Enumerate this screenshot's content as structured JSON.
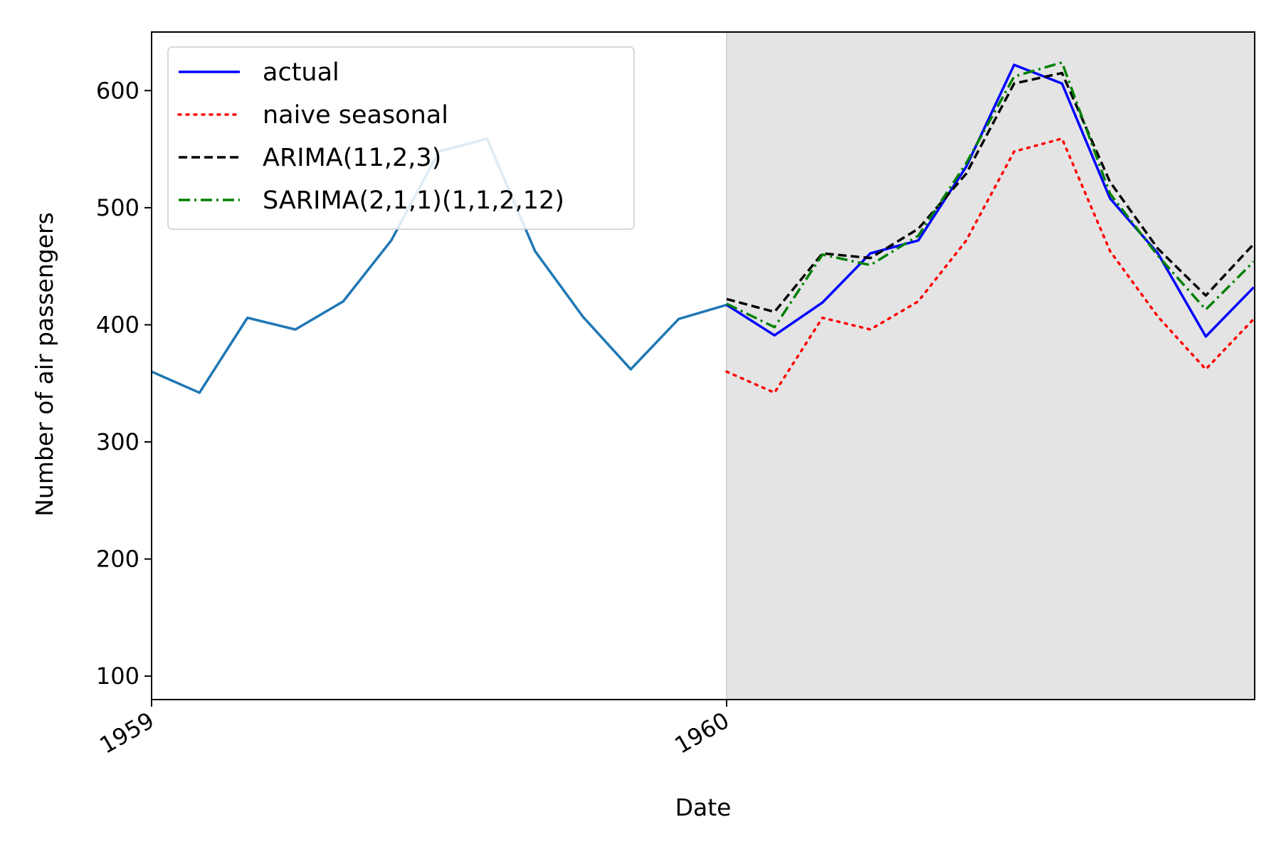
{
  "chart_data": {
    "type": "line",
    "title": "",
    "xlabel": "Date",
    "ylabel": "Number of air passengers",
    "x_tick_labels": [
      "1959",
      "1960"
    ],
    "y_ticks": [
      100,
      200,
      300,
      400,
      500,
      600
    ],
    "ylim": [
      80,
      650
    ],
    "xlim": [
      "1959-01",
      "1960-12"
    ],
    "grid": false,
    "legend_position": "upper-left",
    "forecast_region": {
      "from": "1960-01",
      "to": "1960-12",
      "color": "#e4e4e4"
    },
    "train": {
      "color": "#1f77b4",
      "x": [
        "1959-01",
        "1959-02",
        "1959-03",
        "1959-04",
        "1959-05",
        "1959-06",
        "1959-07",
        "1959-08",
        "1959-09",
        "1959-10",
        "1959-11",
        "1959-12",
        "1960-01"
      ],
      "values": [
        360,
        342,
        406,
        396,
        420,
        472,
        548,
        559,
        463,
        407,
        362,
        405,
        417
      ]
    },
    "x": [
      "1960-01",
      "1960-02",
      "1960-03",
      "1960-04",
      "1960-05",
      "1960-06",
      "1960-07",
      "1960-08",
      "1960-09",
      "1960-10",
      "1960-11",
      "1960-12"
    ],
    "series": [
      {
        "name": "actual",
        "color": "#0000ff",
        "style": "solid",
        "values": [
          417,
          391,
          419,
          461,
          472,
          535,
          622,
          606,
          508,
          461,
          390,
          432
        ]
      },
      {
        "name": "naive seasonal",
        "color": "#ff0000",
        "style": "dotted",
        "values": [
          360,
          342,
          406,
          396,
          420,
          472,
          548,
          559,
          463,
          407,
          362,
          405
        ]
      },
      {
        "name": "ARIMA(11,2,3)",
        "color": "#000000",
        "style": "dashed",
        "values": [
          422,
          411,
          461,
          457,
          482,
          529,
          606,
          615,
          522,
          465,
          425,
          469
        ]
      },
      {
        "name": "SARIMA(2,1,1)(1,1,2,12)",
        "color": "#008000",
        "style": "dashdot",
        "values": [
          418,
          398,
          460,
          451,
          476,
          538,
          612,
          624,
          512,
          459,
          413,
          454
        ]
      }
    ]
  }
}
